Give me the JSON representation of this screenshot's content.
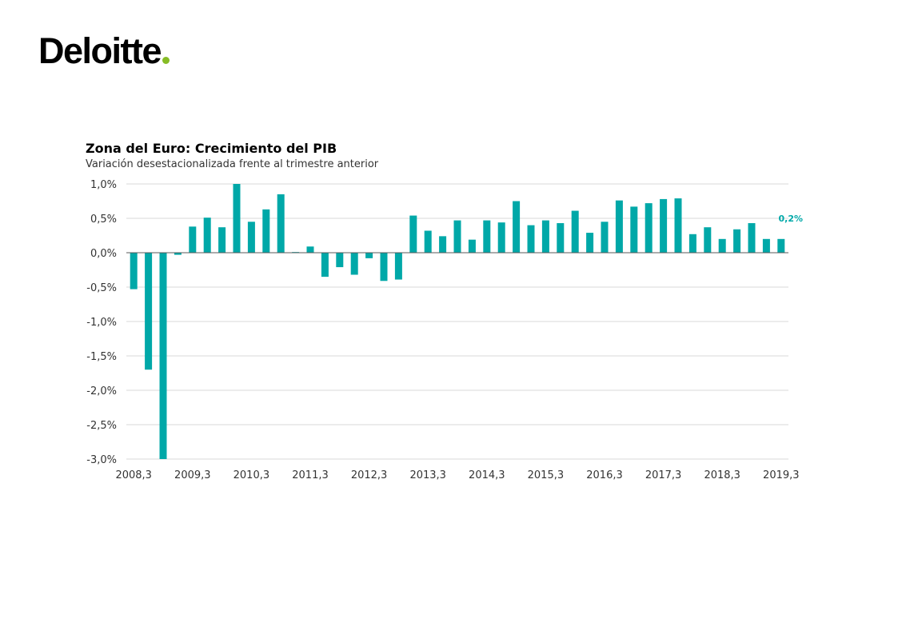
{
  "brand": {
    "logo_text": "Deloitte",
    "dot_color": "#86BC25"
  },
  "chart_data": {
    "type": "bar",
    "title": "Zona del Euro: Crecimiento del PIB",
    "subtitle": "Variación desestacionalizada frente al trimestre anterior",
    "categories": [
      "2008,3",
      "2008,4",
      "2009,1",
      "2009,2",
      "2009,3",
      "2009,4",
      "2010,1",
      "2010,2",
      "2010,3",
      "2010,4",
      "2011,1",
      "2011,2",
      "2011,3",
      "2011,4",
      "2012,1",
      "2012,2",
      "2012,3",
      "2012,4",
      "2013,1",
      "2013,2",
      "2013,3",
      "2013,4",
      "2014,1",
      "2014,2",
      "2014,3",
      "2014,4",
      "2015,1",
      "2015,2",
      "2015,3",
      "2015,4",
      "2016,1",
      "2016,2",
      "2016,3",
      "2016,4",
      "2017,1",
      "2017,2",
      "2017,3",
      "2017,4",
      "2018,1",
      "2018,2",
      "2018,3",
      "2018,4",
      "2019,1",
      "2019,2",
      "2019,3"
    ],
    "values": [
      -0.53,
      -1.7,
      -3.0,
      -0.03,
      0.38,
      0.51,
      0.37,
      1.0,
      0.45,
      0.63,
      0.85,
      0.01,
      0.09,
      -0.35,
      -0.21,
      -0.32,
      -0.08,
      -0.41,
      -0.39,
      0.54,
      0.32,
      0.24,
      0.47,
      0.19,
      0.47,
      0.44,
      0.75,
      0.4,
      0.47,
      0.43,
      0.61,
      0.29,
      0.45,
      0.76,
      0.67,
      0.72,
      0.78,
      0.79,
      0.27,
      0.37,
      0.2,
      0.34,
      0.43,
      0.2,
      0.2
    ],
    "x_tick_labels": [
      "2008,3",
      "2009,3",
      "2010,3",
      "2011,3",
      "2012,3",
      "2013,3",
      "2014,3",
      "2015,3",
      "2016,3",
      "2017,3",
      "2018,3",
      "2019,3"
    ],
    "y_tick_labels": [
      "1,0%",
      "0,5%",
      "0,0%",
      "-0,5%",
      "-1,0%",
      "-1,5%",
      "-2,0%",
      "-2,5%",
      "-3,0%"
    ],
    "y_ticks": [
      1.0,
      0.5,
      0.0,
      -0.5,
      -1.0,
      -1.5,
      -2.0,
      -2.5,
      -3.0
    ],
    "ylim": [
      -3.0,
      1.0
    ],
    "grid": true,
    "bar_color": "#00A8A8",
    "annotation": {
      "category": "2019,3",
      "text": "0,2%"
    }
  }
}
